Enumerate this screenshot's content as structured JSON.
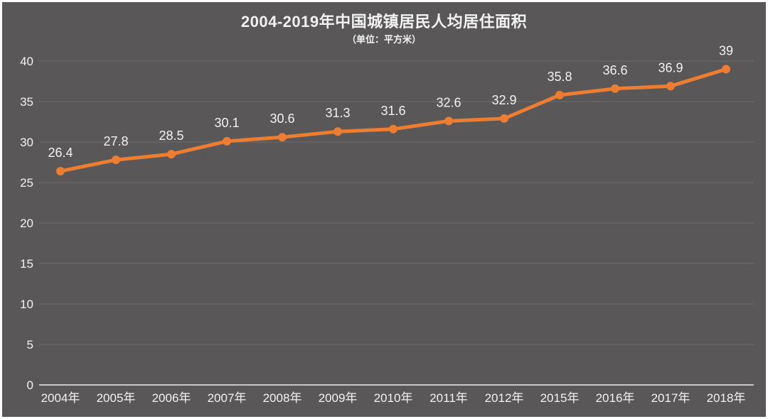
{
  "title": "2004-2019年中国城镇居民人均居住面积",
  "subtitle": "（单位：平方米）",
  "colors": {
    "background": "#595757",
    "frame": "#ffffff",
    "line": "#ED7D31",
    "marker": "#ED7D31",
    "grid": "#6F6D6D",
    "axis_line": "#C9C9C9",
    "text": "#F2F2F2"
  },
  "chart_data": {
    "type": "line",
    "title": "2004-2019年中国城镇居民人均居住面积",
    "subtitle": "（单位：平方米）",
    "categories": [
      "2004年",
      "2005年",
      "2006年",
      "2007年",
      "2008年",
      "2009年",
      "2010年",
      "2011年",
      "2012年",
      "2015年",
      "2016年",
      "2017年",
      "2018年"
    ],
    "values": [
      26.4,
      27.8,
      28.5,
      30.1,
      30.6,
      31.3,
      31.6,
      32.6,
      32.9,
      35.8,
      36.6,
      36.9,
      39
    ],
    "data_labels": [
      "26.4",
      "27.8",
      "28.5",
      "30.1",
      "30.6",
      "31.3",
      "31.6",
      "32.6",
      "32.9",
      "35.8",
      "36.6",
      "36.9",
      "39"
    ],
    "xlabel": "",
    "ylabel": "",
    "ylim": [
      0,
      40
    ],
    "yticks": [
      0,
      5,
      10,
      15,
      20,
      25,
      30,
      35,
      40
    ],
    "grid": true,
    "legend": "none",
    "marker": "circle"
  }
}
